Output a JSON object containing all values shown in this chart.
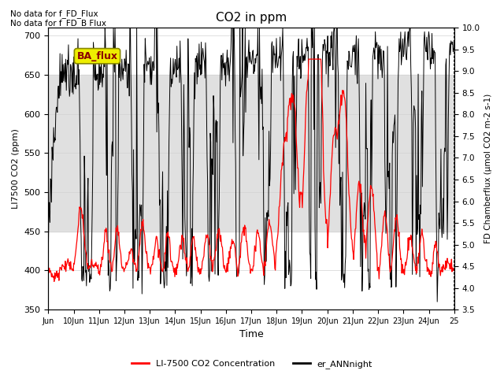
{
  "title": "CO2 in ppm",
  "xlabel": "Time",
  "ylabel_left": "LI7500 CO2 (ppm)",
  "ylabel_right": "FD Chamberflux (μmol CO2 m-2 s-1)",
  "ylim_left": [
    350,
    710
  ],
  "ylim_right": [
    3.5,
    10.0
  ],
  "yticks_left": [
    350,
    400,
    450,
    500,
    550,
    600,
    650,
    700
  ],
  "yticks_right": [
    3.5,
    4.0,
    4.5,
    5.0,
    5.5,
    6.0,
    6.5,
    7.0,
    7.5,
    8.0,
    8.5,
    9.0,
    9.5,
    10.0
  ],
  "text_no_data1": "No data for f_FD_Flux",
  "text_no_data2": "No data for f_FD_B Flux",
  "annotation_box": "BA_flux",
  "annotation_box_color": "#eeee00",
  "annotation_text_color": "#8b0000",
  "line_color_red": "#ff0000",
  "line_color_black": "#000000",
  "legend_label_red": "LI-7500 CO2 Concentration",
  "legend_label_black": "er_ANNnight",
  "background_band_color": "#e0e0e0",
  "band_ylim": [
    450,
    650
  ],
  "xtick_labels": [
    "Jun",
    "10Jun",
    "11Jun",
    "12Jun",
    "13Jun",
    "14Jun",
    "15Jun",
    "16Jun",
    "17Jun",
    "18Jun",
    "19Jun",
    "20Jun",
    "21Jun",
    "22Jun",
    "23Jun",
    "24Jun",
    "25"
  ]
}
